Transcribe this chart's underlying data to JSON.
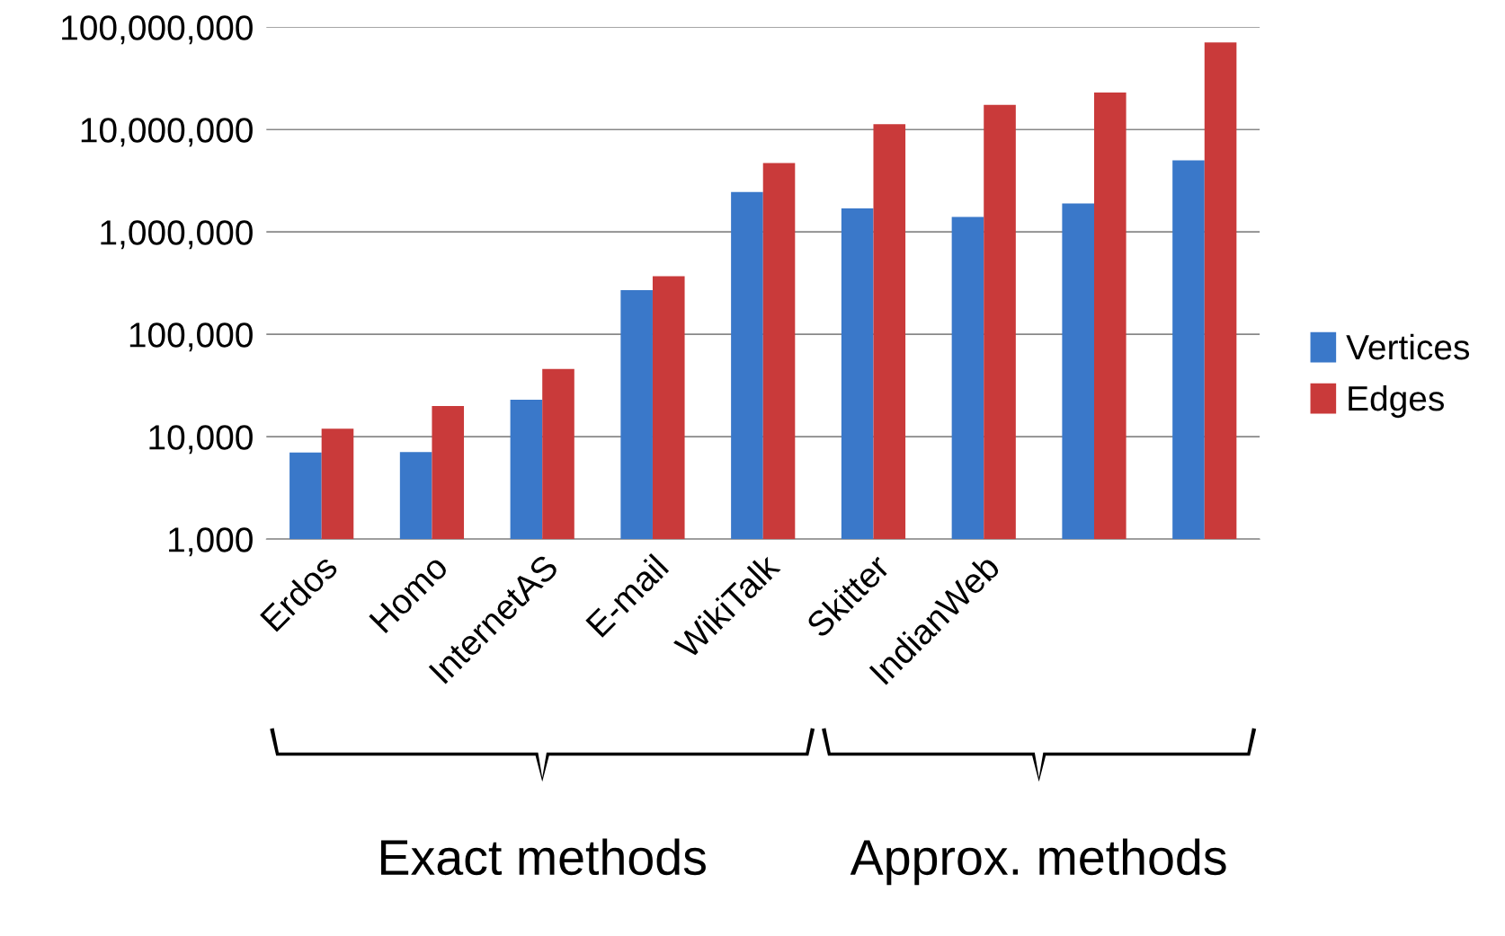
{
  "chart_data": {
    "type": "bar",
    "categories": [
      "Erdos",
      "Homo",
      "InternetAS",
      "E-mail",
      "WikiTalk",
      "Skitter",
      "IndianWeb",
      null,
      null
    ],
    "series": [
      {
        "name": "Vertices",
        "color": "#3a78c9",
        "values": [
          7000,
          7100,
          23000,
          270000,
          2450000,
          1700000,
          1400000,
          1900000,
          5000000
        ]
      },
      {
        "name": "Edges",
        "color": "#c93a3a",
        "values": [
          12000,
          20000,
          46000,
          370000,
          4700000,
          11300000,
          17400000,
          23000000,
          71000000
        ]
      }
    ],
    "log": "y",
    "ylim": [
      1000,
      100000000
    ],
    "yticks": [
      {
        "value": 1000,
        "label": "1,000"
      },
      {
        "value": 10000,
        "label": "10,000"
      },
      {
        "value": 100000,
        "label": "100,000"
      },
      {
        "value": 1000000,
        "label": "1,000,000"
      },
      {
        "value": 10000000,
        "label": "10,000,000"
      },
      {
        "value": 100000000,
        "label": "100,000,000"
      }
    ],
    "grid": "y",
    "legend": "right",
    "annotations": [
      "Exact methods",
      "Approx. methods"
    ]
  }
}
